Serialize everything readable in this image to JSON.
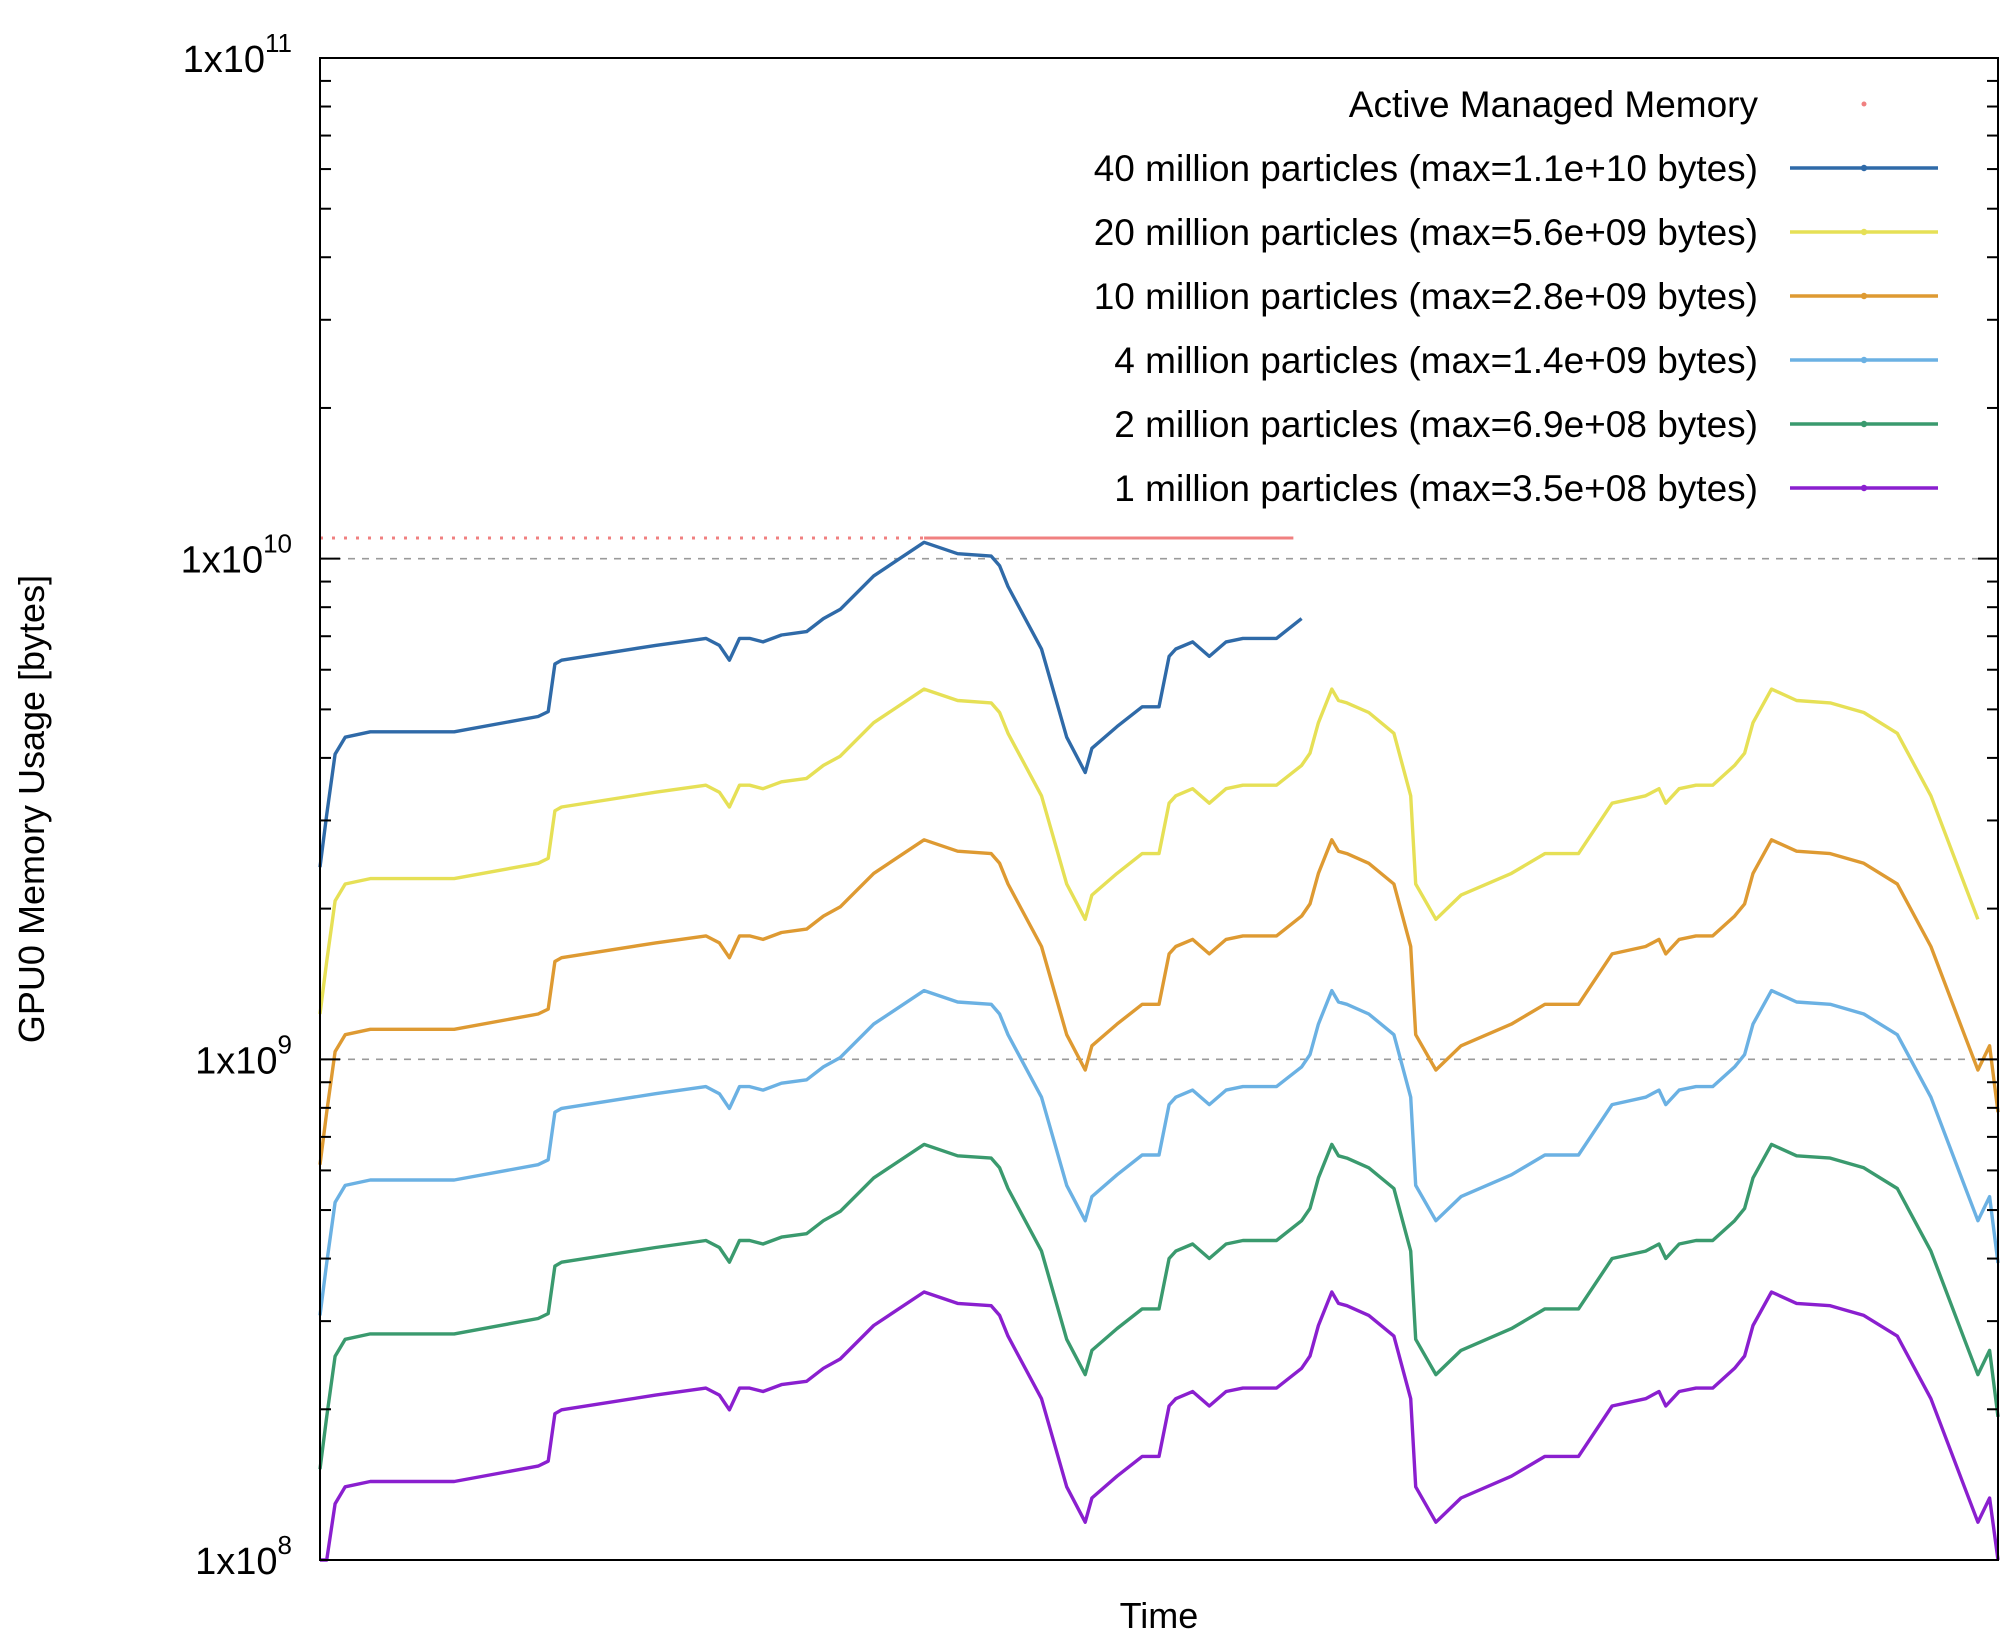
{
  "chart_data": {
    "type": "line",
    "xlabel": "Time",
    "ylabel": "GPU0 Memory Usage [bytes]",
    "yscale": "log",
    "ylim": [
      100000000,
      100000000000
    ],
    "xlim": [
      0,
      100
    ],
    "x_ticks_shown": false,
    "y_ticks": [
      {
        "value": 100000000,
        "base": "1x10",
        "exp": "8"
      },
      {
        "value": 1000000000,
        "base": "1x10",
        "exp": "9"
      },
      {
        "value": 10000000000,
        "base": "1x10",
        "exp": "10"
      },
      {
        "value": 100000000000,
        "base": "1x10",
        "exp": "11"
      }
    ],
    "grid": {
      "y_major_dashed": [
        1000000000,
        10000000000
      ]
    },
    "legend_position": "top-right",
    "active_managed_memory": {
      "name": "Active Managed Memory",
      "color": "#f08080",
      "value": 11000000000,
      "x_range": [
        0,
        58
      ]
    },
    "series": [
      {
        "name": "40 million particles (max=1.1e+10 bytes)",
        "color": "#2f6aa8",
        "scale": 11000000000,
        "x_end": 58.5
      },
      {
        "name": "20 million particles (max=5.6e+09 bytes)",
        "color": "#e6e056",
        "scale": 5600000000,
        "x_end": 99
      },
      {
        "name": "10 million particles (max=2.8e+09 bytes)",
        "color": "#de9a32",
        "scale": 2800000000,
        "x_end": 100
      },
      {
        "name": "4 million particles (max=1.4e+09 bytes)",
        "color": "#6bb1e3",
        "scale": 1400000000,
        "x_end": 100
      },
      {
        "name": "2 million particles (max=6.9e+08 bytes)",
        "color": "#3a9a6e",
        "scale": 690000000,
        "x_end": 100
      },
      {
        "name": "1 million particles (max=3.5e+08 bytes)",
        "color": "#8a1fcf",
        "scale": 350000000,
        "x_end": 100
      }
    ],
    "normalized_profile": {
      "x": [
        0,
        0.4,
        0.9,
        1.5,
        3,
        8,
        13,
        13.6,
        14,
        14.4,
        20,
        23,
        23.8,
        24.4,
        25,
        25.6,
        26.4,
        27.5,
        29,
        30,
        31,
        33,
        36,
        38,
        40,
        40.5,
        41,
        43,
        44.5,
        45.6,
        46,
        47.5,
        49,
        50,
        50.6,
        51,
        52,
        53,
        54,
        55,
        57,
        58.5,
        59,
        59.5,
        60.3,
        60.7,
        61.2,
        62.5,
        64,
        65,
        65.3,
        66.5,
        68,
        71,
        73,
        75,
        77,
        79,
        79.8,
        80.2,
        81,
        82,
        83,
        84.3,
        84.9,
        85.4,
        86.5,
        88,
        90,
        92,
        94,
        96,
        98,
        98.8,
        99.5,
        100
      ],
      "y": [
        0.22,
        0.28,
        0.37,
        0.4,
        0.41,
        0.41,
        0.44,
        0.45,
        0.56,
        0.57,
        0.61,
        0.63,
        0.61,
        0.57,
        0.63,
        0.63,
        0.62,
        0.64,
        0.65,
        0.69,
        0.72,
        0.84,
        0.98,
        0.93,
        0.92,
        0.88,
        0.8,
        0.6,
        0.4,
        0.34,
        0.38,
        0.42,
        0.46,
        0.46,
        0.58,
        0.6,
        0.62,
        0.58,
        0.62,
        0.63,
        0.63,
        0.69,
        0.73,
        0.84,
        0.98,
        0.93,
        0.92,
        0.88,
        0.8,
        0.6,
        0.4,
        0.34,
        0.38,
        0.42,
        0.46,
        0.46,
        0.58,
        0.6,
        0.62,
        0.58,
        0.62,
        0.63,
        0.63,
        0.69,
        0.73,
        0.84,
        0.98,
        0.93,
        0.92,
        0.88,
        0.8,
        0.6,
        0.4,
        0.34,
        0.38,
        0.28
      ]
    }
  }
}
